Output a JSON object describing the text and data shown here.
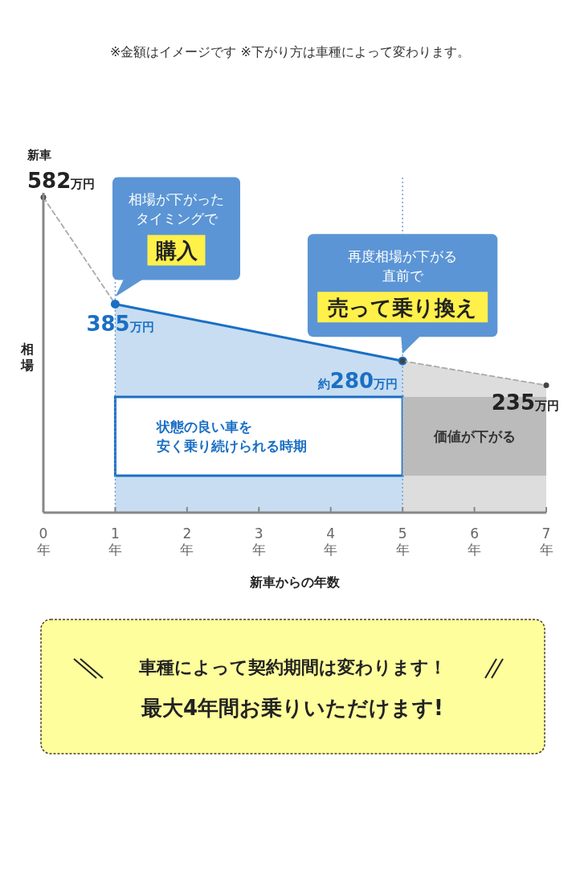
{
  "chart_data": {
    "type": "line",
    "subtitle": "※金額はイメージです ※下がり方は車種によって変わります。",
    "xlabel": "新車からの年数",
    "ylabel": "相場",
    "xlim": [
      0,
      7
    ],
    "ylim": [
      0,
      620
    ],
    "tick_labels": "x",
    "xticks": [
      {
        "value": 0,
        "label": "0年"
      },
      {
        "value": 1,
        "label": "1年"
      },
      {
        "value": 2,
        "label": "2年"
      },
      {
        "value": 3,
        "label": "3年"
      },
      {
        "value": 4,
        "label": "4年"
      },
      {
        "value": 5,
        "label": "5年"
      },
      {
        "value": 6,
        "label": "6年"
      },
      {
        "value": 7,
        "label": "7年"
      }
    ],
    "series": [
      {
        "type": "line",
        "color": "#aaaaaa",
        "line_style": "dashed",
        "marker": "circle",
        "x": [
          0,
          1
        ],
        "values": [
          582,
          385
        ],
        "value_labels": [
          "582万円",
          null
        ]
      },
      {
        "type": "area",
        "color": "#1a6fc4",
        "line_style": "solid",
        "marker": "circle",
        "x": [
          1,
          5
        ],
        "values": [
          385,
          280
        ],
        "value_labels": [
          "385万円",
          "約280万円"
        ]
      },
      {
        "type": "area",
        "color": "#aaaaaa",
        "line_style": "dashed",
        "marker": "circle",
        "x": [
          5,
          7
        ],
        "values": [
          280,
          235
        ],
        "value_labels": [
          null,
          "235万円"
        ]
      }
    ],
    "ref_lines": [
      {
        "axis": "x",
        "value": 1,
        "color": "#5b95d1",
        "line_style": "dotted"
      },
      {
        "axis": "x",
        "value": 5,
        "color": "#5b95d1",
        "line_style": "dotted"
      }
    ],
    "bands": [
      {
        "axis": "x",
        "from": 1,
        "to": 5,
        "label": "状態の良い車を安く乗り続けられる時期",
        "color": "#ffffff"
      },
      {
        "axis": "x",
        "from": 5,
        "to": 7,
        "label": "価値が下がる",
        "color": "#bbbbbb"
      }
    ],
    "annotations": [
      {
        "text": "新車",
        "x": 0,
        "y": 582
      },
      "相場が下がったタイミングで",
      {
        "text": "購入",
        "x": 1,
        "y": 385
      },
      "再度相場が下がる直前で",
      {
        "text": "売って乗り換え",
        "x": 5,
        "y": 280
      },
      "車種によって契約期間は変わります！",
      "最大4年間お乗りいただけます!"
    ]
  }
}
